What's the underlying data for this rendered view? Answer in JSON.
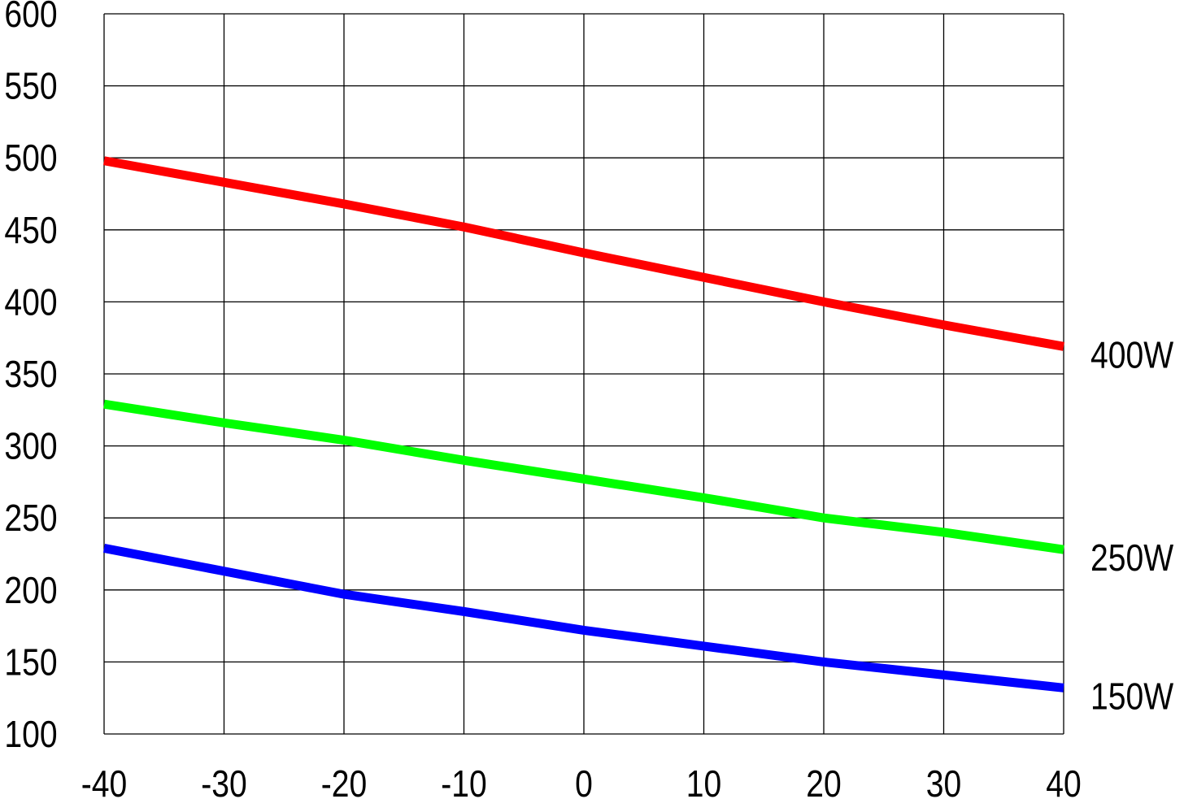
{
  "chart_data": {
    "type": "line",
    "title": "",
    "xlabel": "",
    "ylabel": "",
    "xlim": [
      -40,
      40
    ],
    "ylim": [
      100,
      600
    ],
    "grid": true,
    "x_ticks": [
      "-40",
      "-30",
      "-20",
      "-10",
      "0",
      "10",
      "20",
      "30",
      "40"
    ],
    "y_ticks": [
      "100",
      "150",
      "200",
      "250",
      "300",
      "350",
      "400",
      "450",
      "500",
      "550",
      "600"
    ],
    "x": [
      -40,
      -30,
      -20,
      -10,
      0,
      10,
      20,
      30,
      40
    ],
    "series": [
      {
        "name": "400W",
        "color": "#ff0000",
        "values": [
          498,
          483,
          468,
          452,
          434,
          417,
          400,
          384,
          369
        ]
      },
      {
        "name": "250W",
        "color": "#00ff00",
        "values": [
          329,
          316,
          304,
          290,
          277,
          264,
          250,
          240,
          228
        ]
      },
      {
        "name": "150W",
        "color": "#0000ff",
        "values": [
          229,
          213,
          197,
          185,
          172,
          161,
          150,
          141,
          132
        ]
      }
    ],
    "legend": "series labels at right end of each line"
  }
}
